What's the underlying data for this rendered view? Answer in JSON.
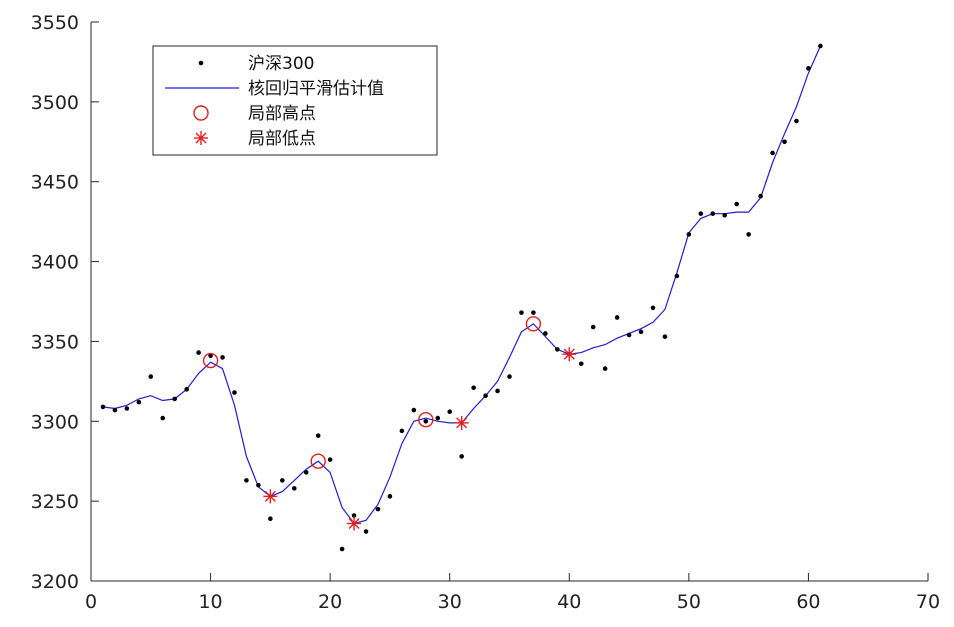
{
  "chart_data": {
    "type": "scatter",
    "title": "",
    "xlabel": "",
    "ylabel": "",
    "xlim": [
      0,
      70
    ],
    "ylim": [
      3200,
      3550
    ],
    "x_ticks": [
      0,
      10,
      20,
      30,
      40,
      50,
      60,
      70
    ],
    "y_ticks": [
      3200,
      3250,
      3300,
      3350,
      3400,
      3450,
      3500,
      3550
    ],
    "grid": false,
    "legend_position": "top-left",
    "colors": {
      "dots": "#000000",
      "line": "#1f1fd0",
      "high": "#e02020",
      "low": "#e02020"
    },
    "series": [
      {
        "name": "沪深300",
        "style": "dots",
        "x": [
          1,
          2,
          3,
          4,
          5,
          6,
          7,
          8,
          9,
          10,
          11,
          12,
          13,
          14,
          15,
          16,
          17,
          18,
          19,
          20,
          21,
          22,
          23,
          24,
          25,
          26,
          27,
          28,
          29,
          30,
          31,
          32,
          33,
          34,
          35,
          36,
          37,
          38,
          39,
          40,
          41,
          42,
          43,
          44,
          45,
          46,
          47,
          48,
          49,
          50,
          51,
          52,
          53,
          54,
          55,
          56,
          57,
          58,
          59,
          60,
          61
        ],
        "y": [
          3309,
          3307,
          3308,
          3312,
          3328,
          3302,
          3314,
          3320,
          3343,
          3341,
          3340,
          3318,
          3263,
          3260,
          3239,
          3263,
          3258,
          3268,
          3291,
          3276,
          3220,
          3241,
          3231,
          3245,
          3253,
          3294,
          3307,
          3300,
          3302,
          3306,
          3278,
          3321,
          3316,
          3319,
          3328,
          3368,
          3368,
          3355,
          3345,
          3342,
          3336,
          3359,
          3333,
          3365,
          3354,
          3356,
          3371,
          3353,
          3391,
          3417,
          3430,
          3430,
          3429,
          3436,
          3417,
          3441,
          3468,
          3475,
          3488,
          3521,
          3535
        ]
      },
      {
        "name": "核回归平滑估计值",
        "style": "line",
        "x": [
          1,
          2,
          3,
          4,
          5,
          6,
          7,
          8,
          9,
          10,
          11,
          12,
          13,
          14,
          15,
          16,
          17,
          18,
          19,
          20,
          21,
          22,
          23,
          24,
          25,
          26,
          27,
          28,
          29,
          30,
          31,
          32,
          33,
          34,
          35,
          36,
          37,
          38,
          39,
          40,
          41,
          42,
          43,
          44,
          45,
          46,
          47,
          48,
          49,
          50,
          51,
          52,
          53,
          54,
          55,
          56,
          57,
          58,
          59,
          60,
          61
        ],
        "y": [
          3309,
          3308,
          3310,
          3314,
          3316,
          3313,
          3314,
          3320,
          3330,
          3337,
          3333,
          3310,
          3278,
          3259,
          3253,
          3256,
          3263,
          3270,
          3275,
          3268,
          3246,
          3236,
          3238,
          3248,
          3265,
          3286,
          3300,
          3302,
          3300,
          3299,
          3299,
          3308,
          3316,
          3325,
          3340,
          3356,
          3361,
          3353,
          3345,
          3342,
          3343,
          3346,
          3348,
          3352,
          3355,
          3358,
          3362,
          3370,
          3393,
          3418,
          3427,
          3430,
          3430,
          3431,
          3431,
          3440,
          3462,
          3480,
          3497,
          3518,
          3535
        ]
      },
      {
        "name": "局部高点",
        "style": "circle",
        "x": [
          10,
          19,
          28,
          37
        ],
        "y": [
          3338,
          3275,
          3301,
          3361
        ]
      },
      {
        "name": "局部低点",
        "style": "star",
        "x": [
          15,
          22,
          31,
          40
        ],
        "y": [
          3253,
          3236,
          3299,
          3342
        ]
      }
    ]
  }
}
